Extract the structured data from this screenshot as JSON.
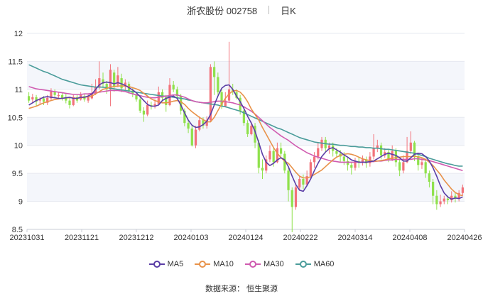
{
  "header": {
    "name": "浙农股份 002758",
    "period": "日K"
  },
  "source_text": "数据来源： 恒生聚源",
  "chart_data": {
    "type": "candlestick",
    "y_ticks": [
      "12",
      "11.5",
      "11",
      "10.5",
      "10",
      "9.5",
      "9",
      "8.5"
    ],
    "ylim": [
      8.5,
      12
    ],
    "x_ticks": [
      "20231031",
      "20231121",
      "20231212",
      "20240103",
      "20240124",
      "20240222",
      "20240314",
      "20240408",
      "20240426"
    ],
    "grid": "horizontal",
    "legend_position": "bottom",
    "colors": {
      "up": "#f2727a",
      "down": "#8fe14c",
      "ma5": "#5b3ea6",
      "ma10": "#e8924a",
      "ma30": "#d05bb0",
      "ma60": "#4a9c9a"
    },
    "candles": [
      [
        10.88,
        10.8,
        10.95,
        10.76
      ],
      [
        10.82,
        10.86,
        10.92,
        10.75
      ],
      [
        10.86,
        10.78,
        10.9,
        10.7
      ],
      [
        10.8,
        10.82,
        10.86,
        10.74
      ],
      [
        10.84,
        10.78,
        10.88,
        10.72
      ],
      [
        10.76,
        10.85,
        10.9,
        10.72
      ],
      [
        10.84,
        10.96,
        11.02,
        10.8
      ],
      [
        10.95,
        10.9,
        11.0,
        10.84
      ],
      [
        10.88,
        10.9,
        10.95,
        10.84
      ],
      [
        10.9,
        10.84,
        10.95,
        10.8
      ],
      [
        10.86,
        10.8,
        10.92,
        10.75
      ],
      [
        10.8,
        10.72,
        10.84,
        10.66
      ],
      [
        10.72,
        10.86,
        10.9,
        10.7
      ],
      [
        10.86,
        10.8,
        10.9,
        10.76
      ],
      [
        10.82,
        10.9,
        10.95,
        10.8
      ],
      [
        10.88,
        10.82,
        10.92,
        10.78
      ],
      [
        10.8,
        10.86,
        10.92,
        10.76
      ],
      [
        10.84,
        10.92,
        11.1,
        10.82
      ],
      [
        10.92,
        11.05,
        11.18,
        10.9
      ],
      [
        11.04,
        11.2,
        11.5,
        11.0
      ],
      [
        11.18,
        11.1,
        11.3,
        11.02
      ],
      [
        11.1,
        11.0,
        11.15,
        10.92
      ],
      [
        11.0,
        11.35,
        11.45,
        10.7
      ],
      [
        11.3,
        11.05,
        11.35,
        10.96
      ],
      [
        11.08,
        11.25,
        11.4,
        11.04
      ],
      [
        11.2,
        11.02,
        11.28,
        10.95
      ],
      [
        11.05,
        11.12,
        11.18,
        10.98
      ],
      [
        11.1,
        10.98,
        11.14,
        10.92
      ],
      [
        10.98,
        10.92,
        11.02,
        10.86
      ],
      [
        10.9,
        10.82,
        10.95,
        10.78
      ],
      [
        10.82,
        10.62,
        10.86,
        10.58
      ],
      [
        10.62,
        10.55,
        10.68,
        10.42
      ],
      [
        10.55,
        10.72,
        10.8,
        10.52
      ],
      [
        10.72,
        10.7,
        10.78,
        10.64
      ],
      [
        10.7,
        10.74,
        10.82,
        10.66
      ],
      [
        10.74,
        10.95,
        11.05,
        10.72
      ],
      [
        10.95,
        10.85,
        11.0,
        10.78
      ],
      [
        10.86,
        10.72,
        10.9,
        10.6
      ],
      [
        10.72,
        11.08,
        11.2,
        10.7
      ],
      [
        11.08,
        11.0,
        11.15,
        10.95
      ],
      [
        11.0,
        10.88,
        11.05,
        10.82
      ],
      [
        10.88,
        10.62,
        10.92,
        10.55
      ],
      [
        10.62,
        10.4,
        10.66,
        10.34
      ],
      [
        10.4,
        10.3,
        10.45,
        10.22
      ],
      [
        10.3,
        10.0,
        10.35,
        9.98
      ],
      [
        10.0,
        10.28,
        10.35,
        9.95
      ],
      [
        10.28,
        10.45,
        10.52,
        10.25
      ],
      [
        10.45,
        10.35,
        10.5,
        10.3
      ],
      [
        10.35,
        10.45,
        10.52,
        10.3
      ],
      [
        10.45,
        11.4,
        11.45,
        10.42
      ],
      [
        11.4,
        11.22,
        11.5,
        10.9
      ],
      [
        11.22,
        10.95,
        11.3,
        10.9
      ],
      [
        10.95,
        10.7,
        11.0,
        10.65
      ],
      [
        10.7,
        10.8,
        10.95,
        10.68
      ],
      [
        10.8,
        11.0,
        11.85,
        10.78
      ],
      [
        11.0,
        10.95,
        11.1,
        10.9
      ],
      [
        10.95,
        10.85,
        11.0,
        10.82
      ],
      [
        10.85,
        10.62,
        10.9,
        10.55
      ],
      [
        10.62,
        10.4,
        10.66,
        10.35
      ],
      [
        10.4,
        10.2,
        10.45,
        10.15
      ],
      [
        10.2,
        10.35,
        10.42,
        10.18
      ],
      [
        10.35,
        10.05,
        10.4,
        9.95
      ],
      [
        10.05,
        9.6,
        10.1,
        9.5
      ],
      [
        9.6,
        9.55,
        9.75,
        9.4
      ],
      [
        9.55,
        9.75,
        9.82,
        9.5
      ],
      [
        9.75,
        9.9,
        10.0,
        9.7
      ],
      [
        9.9,
        9.7,
        9.95,
        9.62
      ],
      [
        9.7,
        9.95,
        10.05,
        9.68
      ],
      [
        9.95,
        9.85,
        10.05,
        9.8
      ],
      [
        9.85,
        9.55,
        9.9,
        9.5
      ],
      [
        9.55,
        9.2,
        9.6,
        9.0
      ],
      [
        9.2,
        8.9,
        9.25,
        8.45
      ],
      [
        8.9,
        9.25,
        9.3,
        8.85
      ],
      [
        9.25,
        9.4,
        9.45,
        9.2
      ],
      [
        9.4,
        9.3,
        9.48,
        9.22
      ],
      [
        9.3,
        9.45,
        9.55,
        9.28
      ],
      [
        9.45,
        9.7,
        9.75,
        9.4
      ],
      [
        9.7,
        9.8,
        9.88,
        9.6
      ],
      [
        9.8,
        9.95,
        10.05,
        9.75
      ],
      [
        9.95,
        10.1,
        10.15,
        9.9
      ],
      [
        10.1,
        9.95,
        10.15,
        9.88
      ],
      [
        9.95,
        10.0,
        10.05,
        9.85
      ],
      [
        10.0,
        9.9,
        10.05,
        9.8
      ],
      [
        9.9,
        9.85,
        9.95,
        9.78
      ],
      [
        9.85,
        9.8,
        9.92,
        9.7
      ],
      [
        9.8,
        9.72,
        9.88,
        9.65
      ],
      [
        9.72,
        9.65,
        9.8,
        9.55
      ],
      [
        9.65,
        9.6,
        9.7,
        9.48
      ],
      [
        9.6,
        9.72,
        9.78,
        9.55
      ],
      [
        9.72,
        9.7,
        9.8,
        9.6
      ],
      [
        9.7,
        9.75,
        9.82,
        9.64
      ],
      [
        9.75,
        9.68,
        9.8,
        9.6
      ],
      [
        9.68,
        9.8,
        9.88,
        9.62
      ],
      [
        9.8,
        9.95,
        10.2,
        9.75
      ],
      [
        9.95,
        10.0,
        10.1,
        9.88
      ],
      [
        10.0,
        9.82,
        10.05,
        9.75
      ],
      [
        9.82,
        9.88,
        9.95,
        9.78
      ],
      [
        9.88,
        9.75,
        9.92,
        9.7
      ],
      [
        9.75,
        9.9,
        10.0,
        9.72
      ],
      [
        9.9,
        9.7,
        9.95,
        9.62
      ],
      [
        9.7,
        9.55,
        9.75,
        9.45
      ],
      [
        9.55,
        9.7,
        9.82,
        9.5
      ],
      [
        9.7,
        9.9,
        10.15,
        9.68
      ],
      [
        9.9,
        10.05,
        10.25,
        9.85
      ],
      [
        10.05,
        9.8,
        10.08,
        9.72
      ],
      [
        9.8,
        9.65,
        9.85,
        9.55
      ],
      [
        9.65,
        9.7,
        9.78,
        9.58
      ],
      [
        9.7,
        9.5,
        9.75,
        9.42
      ],
      [
        9.5,
        9.35,
        9.55,
        9.25
      ],
      [
        9.35,
        9.1,
        9.4,
        8.95
      ],
      [
        9.1,
        8.95,
        9.2,
        8.85
      ],
      [
        8.95,
        9.0,
        9.12,
        8.9
      ],
      [
        9.0,
        9.05,
        9.1,
        8.95
      ],
      [
        9.05,
        9.02,
        9.1,
        8.95
      ],
      [
        9.02,
        9.1,
        9.18,
        8.98
      ],
      [
        9.1,
        9.05,
        9.15,
        8.98
      ],
      [
        9.05,
        9.15,
        9.2,
        9.0
      ],
      [
        9.15,
        9.25,
        9.3,
        9.1
      ]
    ],
    "ma_series": [
      {
        "name": "MA5",
        "values": [
          10.72,
          10.76,
          10.8,
          10.83,
          10.86,
          10.87,
          10.86,
          10.85,
          10.84,
          10.84,
          10.85,
          10.86,
          10.84,
          10.84,
          10.86,
          10.86,
          10.88,
          10.92,
          11.0,
          11.08,
          11.12,
          11.13,
          11.12,
          11.1,
          11.12,
          11.1,
          11.07,
          11.03,
          10.99,
          10.94,
          10.87,
          10.8,
          10.73,
          10.7,
          10.7,
          10.72,
          10.8,
          10.84,
          10.86,
          10.88,
          10.84,
          10.72,
          10.58,
          10.45,
          10.36,
          10.32,
          10.33,
          10.37,
          10.43,
          10.55,
          10.72,
          10.88,
          11.02,
          11.07,
          11.08,
          11.0,
          10.88,
          10.78,
          10.66,
          10.52,
          10.4,
          10.25,
          10.05,
          9.84,
          9.7,
          9.64,
          9.68,
          9.74,
          9.78,
          9.74,
          9.62,
          9.45,
          9.3,
          9.2,
          9.18,
          9.28,
          9.4,
          9.55,
          9.68,
          9.8,
          9.88,
          9.94,
          9.96,
          9.92,
          9.88,
          9.83,
          9.79,
          9.74,
          9.72,
          9.7,
          9.7,
          9.7,
          9.71,
          9.72,
          9.76,
          9.8,
          9.84,
          9.86,
          9.84,
          9.82,
          9.78,
          9.72,
          9.72,
          9.78,
          9.84,
          9.86,
          9.85,
          9.8,
          9.72,
          9.6,
          9.45,
          9.28,
          9.15,
          9.08,
          9.04,
          9.06,
          9.05,
          9.08
        ]
      },
      {
        "name": "MA10",
        "values": [
          10.66,
          10.68,
          10.7,
          10.73,
          10.76,
          10.78,
          10.8,
          10.82,
          10.83,
          10.84,
          10.85,
          10.85,
          10.85,
          10.84,
          10.85,
          10.86,
          10.87,
          10.88,
          10.92,
          10.96,
          11.0,
          11.02,
          11.04,
          11.05,
          11.06,
          11.06,
          11.06,
          11.05,
          11.03,
          11.01,
          10.98,
          10.93,
          10.88,
          10.83,
          10.8,
          10.78,
          10.76,
          10.76,
          10.77,
          10.79,
          10.8,
          10.78,
          10.73,
          10.66,
          10.6,
          10.55,
          10.5,
          10.46,
          10.42,
          10.42,
          10.5,
          10.62,
          10.74,
          10.84,
          10.92,
          10.97,
          10.98,
          10.95,
          10.88,
          10.78,
          10.65,
          10.55,
          10.45,
          10.32,
          10.2,
          10.08,
          9.96,
          9.86,
          9.78,
          9.72,
          9.68,
          9.6,
          9.52,
          9.45,
          9.42,
          9.42,
          9.44,
          9.48,
          9.52,
          9.56,
          9.62,
          9.68,
          9.74,
          9.79,
          9.82,
          9.84,
          9.85,
          9.84,
          9.82,
          9.79,
          9.76,
          9.74,
          9.73,
          9.72,
          9.72,
          9.73,
          9.74,
          9.76,
          9.77,
          9.78,
          9.79,
          9.8,
          9.8,
          9.8,
          9.8,
          9.8,
          9.78,
          9.75,
          9.7,
          9.64,
          9.56,
          9.48,
          9.38,
          9.3,
          9.22,
          9.16,
          9.12,
          9.1
        ]
      },
      {
        "name": "MA30",
        "values": [
          11.05,
          11.03,
          11.01,
          11.0,
          10.99,
          10.98,
          10.97,
          10.96,
          10.95,
          10.94,
          10.93,
          10.92,
          10.91,
          10.91,
          10.91,
          10.92,
          10.92,
          10.93,
          10.94,
          10.95,
          10.96,
          10.97,
          10.98,
          10.98,
          10.98,
          10.97,
          10.96,
          10.94,
          10.92,
          10.9,
          10.89,
          10.87,
          10.86,
          10.85,
          10.85,
          10.86,
          10.87,
          10.88,
          10.89,
          10.9,
          10.9,
          10.88,
          10.86,
          10.83,
          10.8,
          10.78,
          10.77,
          10.76,
          10.76,
          10.77,
          10.78,
          10.79,
          10.79,
          10.78,
          10.77,
          10.76,
          10.74,
          10.72,
          10.69,
          10.65,
          10.61,
          10.56,
          10.5,
          10.44,
          10.38,
          10.32,
          10.27,
          10.22,
          10.17,
          10.13,
          10.09,
          10.04,
          9.99,
          9.95,
          9.91,
          9.87,
          9.84,
          9.81,
          9.79,
          9.77,
          9.75,
          9.73,
          9.72,
          9.71,
          9.7,
          9.7,
          9.7,
          9.7,
          9.7,
          9.7,
          9.7,
          9.7,
          9.71,
          9.71,
          9.72,
          9.72,
          9.73,
          9.74,
          9.74,
          9.75,
          9.75,
          9.75,
          9.75,
          9.75,
          9.76,
          9.76,
          9.75,
          9.74,
          9.73,
          9.71,
          9.69,
          9.67,
          9.65,
          9.63,
          9.61,
          9.59,
          9.57,
          9.55
        ]
      },
      {
        "name": "MA60",
        "values": [
          11.44,
          11.41,
          11.38,
          11.35,
          11.32,
          11.3,
          11.27,
          11.24,
          11.21,
          11.18,
          11.16,
          11.14,
          11.12,
          11.1,
          11.08,
          11.07,
          11.06,
          11.05,
          11.04,
          11.04,
          11.04,
          11.03,
          11.02,
          11.01,
          11.0,
          10.99,
          10.98,
          10.97,
          10.96,
          10.95,
          10.94,
          10.93,
          10.92,
          10.91,
          10.9,
          10.89,
          10.88,
          10.88,
          10.87,
          10.86,
          10.85,
          10.84,
          10.83,
          10.81,
          10.8,
          10.78,
          10.77,
          10.76,
          10.75,
          10.74,
          10.73,
          10.72,
          10.7,
          10.69,
          10.67,
          10.65,
          10.63,
          10.61,
          10.58,
          10.55,
          10.52,
          10.49,
          10.46,
          10.43,
          10.4,
          10.37,
          10.34,
          10.31,
          10.29,
          10.26,
          10.23,
          10.2,
          10.17,
          10.14,
          10.12,
          10.1,
          10.08,
          10.06,
          10.05,
          10.04,
          10.03,
          10.02,
          10.02,
          10.01,
          10.0,
          10.0,
          9.99,
          9.98,
          9.98,
          9.97,
          9.97,
          9.96,
          9.96,
          9.95,
          9.95,
          9.94,
          9.93,
          9.93,
          9.92,
          9.91,
          9.9,
          9.89,
          9.88,
          9.87,
          9.86,
          9.84,
          9.82,
          9.8,
          9.77,
          9.75,
          9.73,
          9.71,
          9.69,
          9.67,
          9.66,
          9.64,
          9.63,
          9.63
        ]
      }
    ]
  }
}
